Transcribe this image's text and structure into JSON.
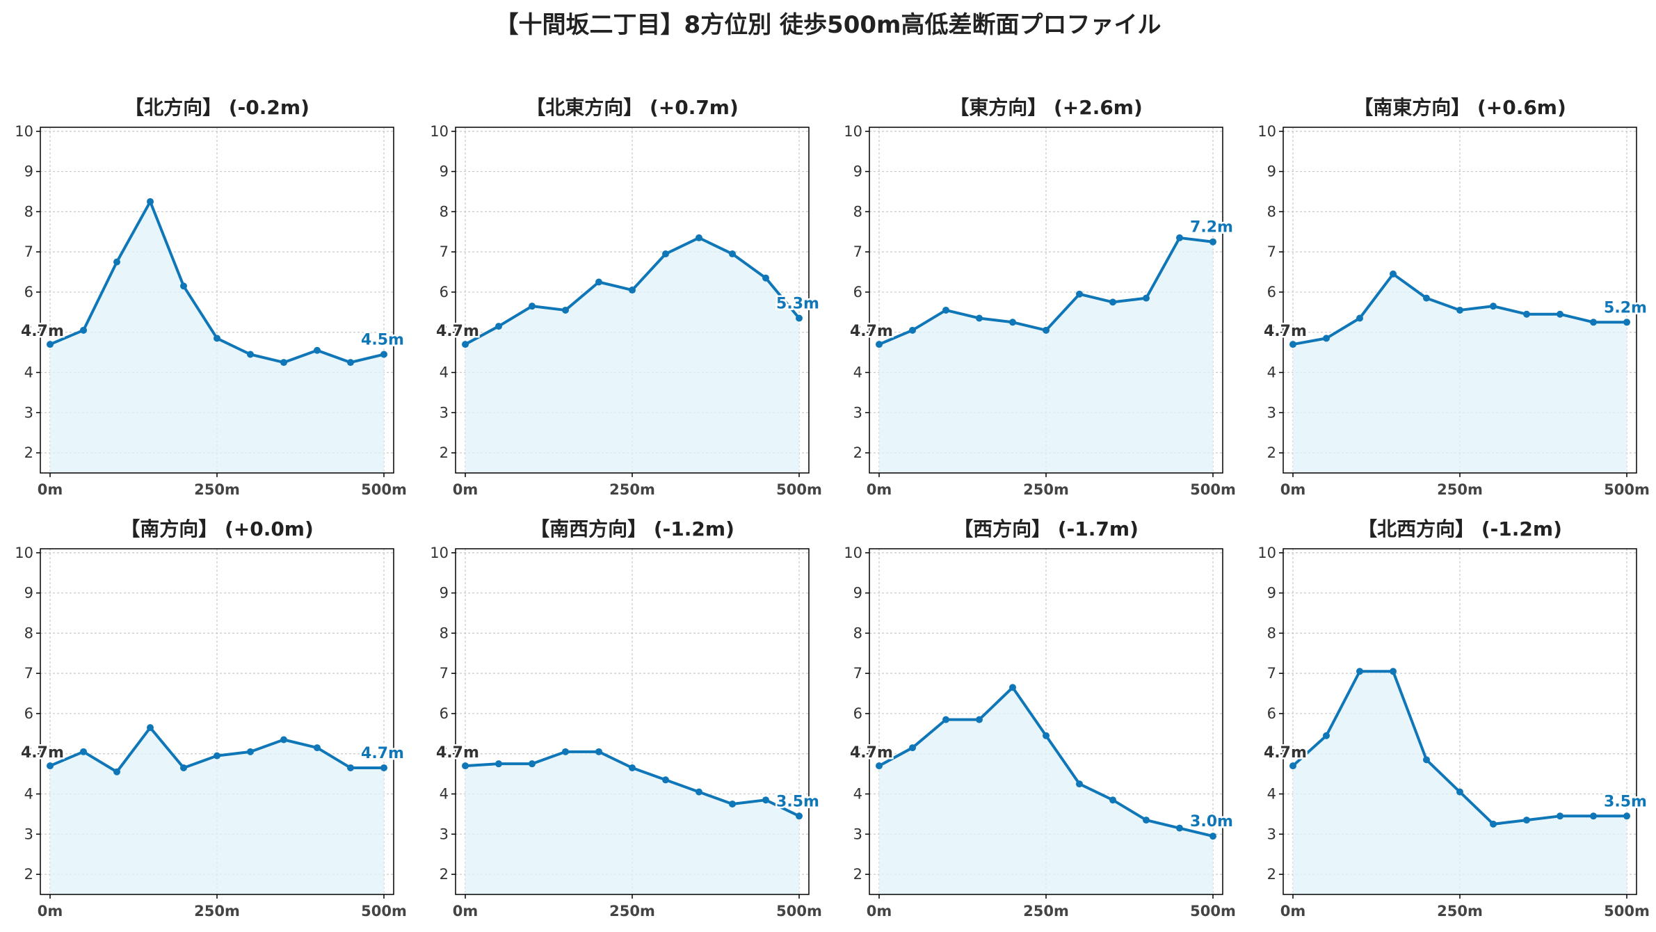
{
  "title": "【十間坂二丁目】8方位別 徒歩500m高低差断面プロファイル",
  "colors": {
    "line": "#0f77b8",
    "fill": "#e0f3fa",
    "grid": "#c8c8c8",
    "axis": "#000000"
  },
  "chart_data": [
    {
      "type": "area",
      "title": "【北方向】 (-0.2m)",
      "x": [
        0,
        50,
        100,
        150,
        200,
        250,
        300,
        350,
        400,
        450,
        500
      ],
      "values": [
        4.7,
        5.05,
        6.75,
        8.25,
        6.15,
        4.85,
        4.45,
        4.25,
        4.55,
        4.25,
        4.45
      ],
      "start_label": "4.7m",
      "end_label": "4.5m",
      "xticks": [
        "0m",
        "250m",
        "500m"
      ],
      "yticks": [
        "2",
        "3",
        "4",
        "5",
        "6",
        "7",
        "8",
        "9",
        "10"
      ],
      "xlim": [
        0,
        500
      ],
      "ylim": [
        1.5,
        10.1
      ],
      "grid": true
    },
    {
      "type": "area",
      "title": "【北東方向】 (+0.7m)",
      "x": [
        0,
        50,
        100,
        150,
        200,
        250,
        300,
        350,
        400,
        450,
        500
      ],
      "values": [
        4.7,
        5.15,
        5.65,
        5.55,
        6.25,
        6.05,
        6.95,
        7.35,
        6.95,
        6.35,
        5.35
      ],
      "start_label": "4.7m",
      "end_label": "5.3m",
      "xticks": [
        "0m",
        "250m",
        "500m"
      ],
      "yticks": [
        "2",
        "3",
        "4",
        "5",
        "6",
        "7",
        "8",
        "9",
        "10"
      ],
      "xlim": [
        0,
        500
      ],
      "ylim": [
        1.5,
        10.1
      ],
      "grid": true
    },
    {
      "type": "area",
      "title": "【東方向】 (+2.6m)",
      "x": [
        0,
        50,
        100,
        150,
        200,
        250,
        300,
        350,
        400,
        450,
        500
      ],
      "values": [
        4.7,
        5.05,
        5.55,
        5.35,
        5.25,
        5.05,
        5.95,
        5.75,
        5.85,
        7.35,
        7.25
      ],
      "start_label": "4.7m",
      "end_label": "7.2m",
      "xticks": [
        "0m",
        "250m",
        "500m"
      ],
      "yticks": [
        "2",
        "3",
        "4",
        "5",
        "6",
        "7",
        "8",
        "9",
        "10"
      ],
      "xlim": [
        0,
        500
      ],
      "ylim": [
        1.5,
        10.1
      ],
      "grid": true
    },
    {
      "type": "area",
      "title": "【南東方向】 (+0.6m)",
      "x": [
        0,
        50,
        100,
        150,
        200,
        250,
        300,
        350,
        400,
        450,
        500
      ],
      "values": [
        4.7,
        4.85,
        5.35,
        6.45,
        5.85,
        5.55,
        5.65,
        5.45,
        5.45,
        5.25,
        5.25
      ],
      "start_label": "4.7m",
      "end_label": "5.2m",
      "xticks": [
        "0m",
        "250m",
        "500m"
      ],
      "yticks": [
        "2",
        "3",
        "4",
        "5",
        "6",
        "7",
        "8",
        "9",
        "10"
      ],
      "xlim": [
        0,
        500
      ],
      "ylim": [
        1.5,
        10.1
      ],
      "grid": true
    },
    {
      "type": "area",
      "title": "【南方向】 (+0.0m)",
      "x": [
        0,
        50,
        100,
        150,
        200,
        250,
        300,
        350,
        400,
        450,
        500
      ],
      "values": [
        4.7,
        5.05,
        4.55,
        5.65,
        4.65,
        4.95,
        5.05,
        5.35,
        5.15,
        4.65,
        4.65
      ],
      "start_label": "4.7m",
      "end_label": "4.7m",
      "xticks": [
        "0m",
        "250m",
        "500m"
      ],
      "yticks": [
        "2",
        "3",
        "4",
        "5",
        "6",
        "7",
        "8",
        "9",
        "10"
      ],
      "xlim": [
        0,
        500
      ],
      "ylim": [
        1.5,
        10.1
      ],
      "grid": true
    },
    {
      "type": "area",
      "title": "【南西方向】 (-1.2m)",
      "x": [
        0,
        50,
        100,
        150,
        200,
        250,
        300,
        350,
        400,
        450,
        500
      ],
      "values": [
        4.7,
        4.75,
        4.75,
        5.05,
        5.05,
        4.65,
        4.35,
        4.05,
        3.75,
        3.85,
        3.45
      ],
      "start_label": "4.7m",
      "end_label": "3.5m",
      "xticks": [
        "0m",
        "250m",
        "500m"
      ],
      "yticks": [
        "2",
        "3",
        "4",
        "5",
        "6",
        "7",
        "8",
        "9",
        "10"
      ],
      "xlim": [
        0,
        500
      ],
      "ylim": [
        1.5,
        10.1
      ],
      "grid": true
    },
    {
      "type": "area",
      "title": "【西方向】 (-1.7m)",
      "x": [
        0,
        50,
        100,
        150,
        200,
        250,
        300,
        350,
        400,
        450,
        500
      ],
      "values": [
        4.7,
        5.15,
        5.85,
        5.85,
        6.65,
        5.45,
        4.25,
        3.85,
        3.35,
        3.15,
        2.95
      ],
      "start_label": "4.7m",
      "end_label": "3.0m",
      "xticks": [
        "0m",
        "250m",
        "500m"
      ],
      "yticks": [
        "2",
        "3",
        "4",
        "5",
        "6",
        "7",
        "8",
        "9",
        "10"
      ],
      "xlim": [
        0,
        500
      ],
      "ylim": [
        1.5,
        10.1
      ],
      "grid": true
    },
    {
      "type": "area",
      "title": "【北西方向】 (-1.2m)",
      "x": [
        0,
        50,
        100,
        150,
        200,
        250,
        300,
        350,
        400,
        450,
        500
      ],
      "values": [
        4.7,
        5.45,
        7.05,
        7.05,
        4.85,
        4.05,
        3.25,
        3.35,
        3.45,
        3.45,
        3.45
      ],
      "start_label": "4.7m",
      "end_label": "3.5m",
      "xticks": [
        "0m",
        "250m",
        "500m"
      ],
      "yticks": [
        "2",
        "3",
        "4",
        "5",
        "6",
        "7",
        "8",
        "9",
        "10"
      ],
      "xlim": [
        0,
        500
      ],
      "ylim": [
        1.5,
        10.1
      ],
      "grid": true
    }
  ]
}
